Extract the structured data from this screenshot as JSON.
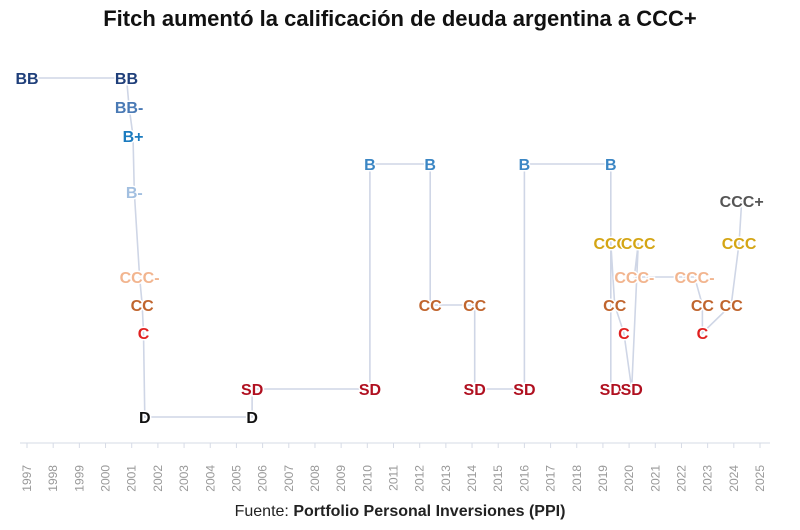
{
  "chart_data": {
    "type": "step",
    "title": "Fitch aumentó la calificación de deuda argentina a CCC+",
    "source_label": "Fuente:",
    "source_name": "Portfolio Personal Inversiones (PPI)",
    "xlabel": "",
    "ylabel": "",
    "xlim": [
      1997,
      2025
    ],
    "x_ticks": [
      "1997",
      "1998",
      "1999",
      "2000",
      "2001",
      "2002",
      "2003",
      "2004",
      "2005",
      "2006",
      "2007",
      "2008",
      "2009",
      "2010",
      "2011",
      "2012",
      "2013",
      "2014",
      "2015",
      "2016",
      "2017",
      "2018",
      "2019",
      "2020",
      "2021",
      "2022",
      "2023",
      "2024",
      "2025"
    ],
    "rating_scale": [
      "D",
      "SD",
      "C",
      "CC",
      "CCC-",
      "CCC",
      "CCC+",
      "B-",
      "B",
      "B+",
      "BB-",
      "BB"
    ],
    "colors": {
      "BB": "#1f3f7a",
      "BB-": "#4a7ab5",
      "B+": "#1b7bbf",
      "B": "#3b86c4",
      "B-": "#a2bfe0",
      "CCC+": "#555555",
      "CCC": "#d4a514",
      "CCC-": "#f2b58f",
      "CC": "#c0652e",
      "C": "#e02020",
      "SD": "#b01020",
      "D": "#111111",
      "line": "#cfd6e6",
      "axis": "#d6dbe6",
      "tick_label": "#999999"
    },
    "points": [
      {
        "year": 1997.0,
        "rating": "BB"
      },
      {
        "year": 2000.8,
        "rating": "BB"
      },
      {
        "year": 2000.9,
        "rating": "BB-"
      },
      {
        "year": 2001.05,
        "rating": "B+"
      },
      {
        "year": 2001.1,
        "rating": "B-"
      },
      {
        "year": 2001.3,
        "rating": "CCC-"
      },
      {
        "year": 2001.4,
        "rating": "CC"
      },
      {
        "year": 2001.45,
        "rating": "C"
      },
      {
        "year": 2001.5,
        "rating": "D"
      },
      {
        "year": 2005.6,
        "rating": "D"
      },
      {
        "year": 2005.6,
        "rating": "SD"
      },
      {
        "year": 2010.1,
        "rating": "SD"
      },
      {
        "year": 2010.1,
        "rating": "B"
      },
      {
        "year": 2012.4,
        "rating": "B"
      },
      {
        "year": 2012.4,
        "rating": "CC"
      },
      {
        "year": 2014.1,
        "rating": "CC"
      },
      {
        "year": 2014.1,
        "rating": "SD"
      },
      {
        "year": 2016.0,
        "rating": "SD"
      },
      {
        "year": 2016.0,
        "rating": "B"
      },
      {
        "year": 2019.3,
        "rating": "B"
      },
      {
        "year": 2019.3,
        "rating": "SD"
      },
      {
        "year": 2019.3,
        "rating": "CCC"
      },
      {
        "year": 2019.45,
        "rating": "CC"
      },
      {
        "year": 2019.8,
        "rating": "C"
      },
      {
        "year": 2020.1,
        "rating": "SD"
      },
      {
        "year": 2020.35,
        "rating": "CCC"
      },
      {
        "year": 2020.2,
        "rating": "CCC-"
      },
      {
        "year": 2022.5,
        "rating": "CCC-"
      },
      {
        "year": 2022.8,
        "rating": "CC"
      },
      {
        "year": 2022.8,
        "rating": "C"
      },
      {
        "year": 2023.9,
        "rating": "CC"
      },
      {
        "year": 2024.2,
        "rating": "CCC"
      },
      {
        "year": 2024.3,
        "rating": "CCC+"
      }
    ],
    "line_path": [
      [
        1997.0,
        "BB"
      ],
      [
        2000.8,
        "BB"
      ],
      [
        2000.9,
        "BB-"
      ],
      [
        2001.05,
        "B+"
      ],
      [
        2001.1,
        "B-"
      ],
      [
        2001.3,
        "CCC-"
      ],
      [
        2001.4,
        "CC"
      ],
      [
        2001.45,
        "C"
      ],
      [
        2001.5,
        "D"
      ],
      [
        2005.6,
        "D"
      ],
      [
        2005.6,
        "SD"
      ],
      [
        2010.1,
        "SD"
      ],
      [
        2010.1,
        "B"
      ],
      [
        2012.4,
        "B"
      ],
      [
        2012.4,
        "CC"
      ],
      [
        2014.1,
        "CC"
      ],
      [
        2014.1,
        "SD"
      ],
      [
        2016.0,
        "SD"
      ],
      [
        2016.0,
        "B"
      ],
      [
        2019.3,
        "B"
      ],
      [
        2019.3,
        "SD"
      ],
      [
        2019.3,
        "CCC"
      ],
      [
        2019.45,
        "CC"
      ],
      [
        2019.8,
        "C"
      ],
      [
        2020.1,
        "SD"
      ],
      [
        2020.35,
        "CCC"
      ],
      [
        2020.2,
        "CCC-"
      ],
      [
        2022.5,
        "CCC-"
      ],
      [
        2022.8,
        "CC"
      ],
      [
        2022.8,
        "C"
      ],
      [
        2023.9,
        "CC"
      ],
      [
        2024.2,
        "CCC"
      ],
      [
        2024.3,
        "CCC+"
      ]
    ]
  }
}
